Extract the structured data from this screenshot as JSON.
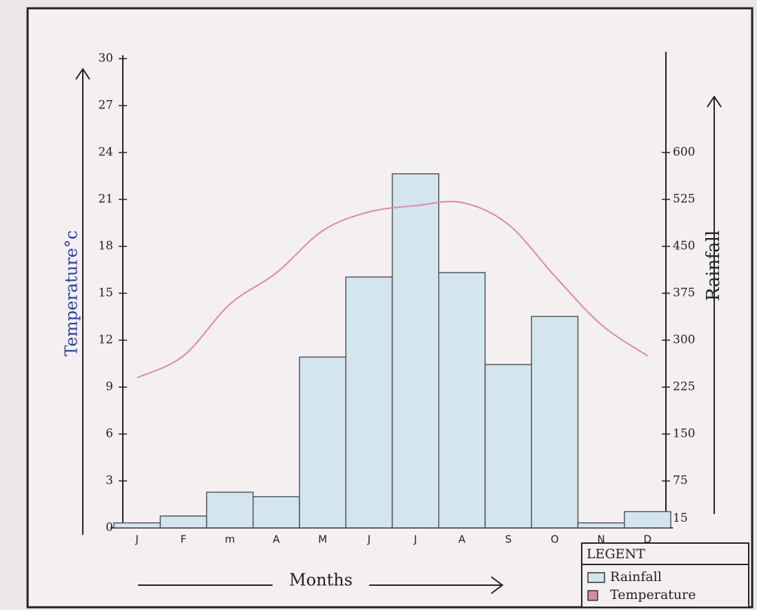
{
  "chart_data": {
    "type": "combo",
    "y_label": "Temperature°c",
    "y2_label": "Rainfall",
    "x_label": "Months",
    "legend_title": "LEGENT",
    "categories": [
      "J",
      "F",
      "m",
      "A",
      "M",
      "J",
      "J",
      "A",
      "S",
      "O",
      "N",
      "D"
    ],
    "series": [
      {
        "name": "Rainfall",
        "type": "bar",
        "axis": "y2",
        "color": "#d3e5ee",
        "values": [
          8,
          19,
          57,
          50,
          273,
          401,
          566,
          408,
          261,
          338,
          8,
          26
        ]
      },
      {
        "name": "Temperature",
        "type": "line",
        "axis": "y",
        "color": "#d98c9c",
        "values": [
          9.6,
          11.0,
          14.3,
          16.3,
          19.0,
          20.2,
          20.6,
          20.8,
          19.4,
          16.1,
          13.0,
          11.0
        ]
      }
    ],
    "ylim": [
      0,
      30
    ],
    "yticks": [
      0,
      3,
      6,
      9,
      12,
      15,
      18,
      21,
      24,
      27,
      30
    ],
    "y2lim": [
      0,
      750
    ],
    "y2ticks": [
      15,
      75,
      150,
      225,
      300,
      375,
      450,
      525,
      600
    ]
  }
}
